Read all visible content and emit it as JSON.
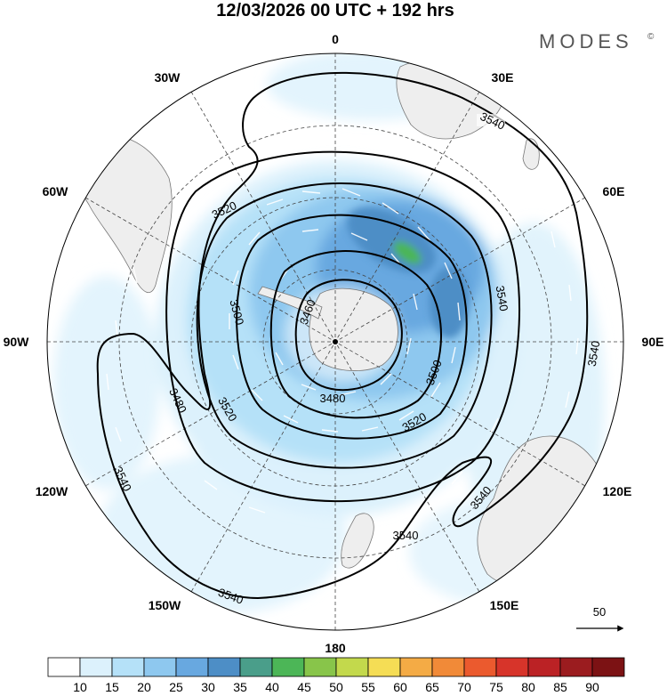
{
  "title": "12/03/2026  00 UTC  + 192 hrs",
  "brand": {
    "name": "MODES",
    "mark": "©"
  },
  "longitude_labels": {
    "lon_0": "0",
    "lon_30e": "30E",
    "lon_60e": "60E",
    "lon_90e": "90E",
    "lon_120e": "120E",
    "lon_150e": "150E",
    "lon_180": "180",
    "lon_150w": "150W",
    "lon_120w": "120W",
    "lon_90w": "90W",
    "lon_60w": "60W",
    "lon_30w": "30W"
  },
  "contour_labels": {
    "c1": "3540",
    "c2": "3520",
    "c3": "3500",
    "c4": "3480",
    "c5": "3460",
    "c6": "3500",
    "c7": "3520",
    "c8": "3540",
    "c9": "3540",
    "c10": "3540",
    "c11": "3540",
    "c12": "3540",
    "c13": "3540",
    "c14": "3520",
    "c15": "3480"
  },
  "vector_scale": {
    "value": "50"
  },
  "colorbar": {
    "ticks": [
      "10",
      "15",
      "20",
      "25",
      "30",
      "35",
      "40",
      "45",
      "50",
      "55",
      "60",
      "65",
      "70",
      "75",
      "80",
      "85",
      "90"
    ],
    "colors": [
      "#ffffff",
      "#dcf1fc",
      "#b5e1f8",
      "#8ec8ef",
      "#68a8e0",
      "#4d8ec6",
      "#4a9e8a",
      "#4cb657",
      "#88c54a",
      "#c3d94c",
      "#f5dd55",
      "#f4ab45",
      "#f18a38",
      "#eb5a2e",
      "#d7342a",
      "#bb2225",
      "#9b1c1f",
      "#7c1214"
    ]
  },
  "colors": {
    "land": "#eeeeee",
    "coast": "#777777",
    "contour": "#000000",
    "grid": "#444444"
  }
}
